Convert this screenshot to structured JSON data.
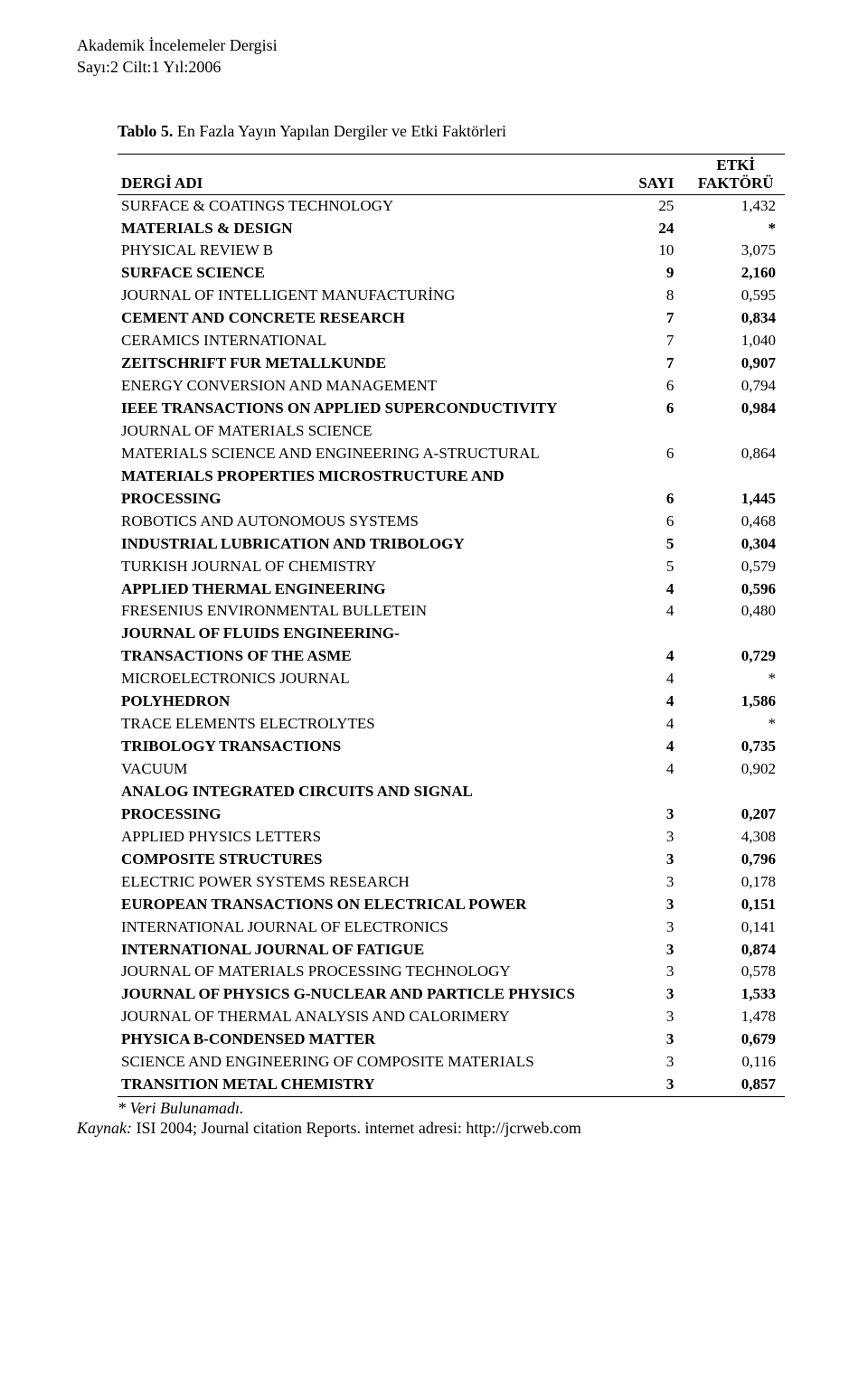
{
  "header": {
    "line1": "Akademik İncelemeler Dergisi",
    "line2": "Sayı:2 Cilt:1 Yıl:2006"
  },
  "table": {
    "caption_bold": "Tablo 5.",
    "caption_rest": " En Fazla Yayın Yapılan Dergiler ve Etki Faktörleri",
    "headers": {
      "dergi": "DERGİ ADI",
      "sayi": "SAYI",
      "etki_line1": "ETKİ",
      "etki_line2": "FAKTÖRÜ"
    },
    "rows": [
      {
        "name": "SURFACE & COATINGS TECHNOLOGY",
        "sayi": "25",
        "etki": "1,432",
        "bold": false
      },
      {
        "name": "MATERIALS & DESIGN",
        "sayi": "24",
        "etki": "*",
        "bold": true
      },
      {
        "name": "PHYSICAL REVIEW B",
        "sayi": "10",
        "etki": "3,075",
        "bold": false
      },
      {
        "name": "SURFACE SCIENCE",
        "sayi": "9",
        "etki": "2,160",
        "bold": true
      },
      {
        "name": "JOURNAL OF INTELLIGENT MANUFACTURİNG",
        "sayi": "8",
        "etki": "0,595",
        "bold": false
      },
      {
        "name": "CEMENT AND CONCRETE RESEARCH",
        "sayi": "7",
        "etki": "0,834",
        "bold": true
      },
      {
        "name": "CERAMICS INTERNATIONAL",
        "sayi": "7",
        "etki": "1,040",
        "bold": false
      },
      {
        "name": "ZEITSCHRIFT FUR METALLKUNDE",
        "sayi": "7",
        "etki": "0,907",
        "bold": true
      },
      {
        "name": "ENERGY CONVERSION AND MANAGEMENT",
        "sayi": "6",
        "etki": "0,794",
        "bold": false
      },
      {
        "name": "IEEE TRANSACTIONS ON APPLIED SUPERCONDUCTIVITY",
        "sayi": "6",
        "etki": "0,984",
        "bold": true
      },
      {
        "name": "JOURNAL OF MATERIALS SCIENCE",
        "sayi": "",
        "etki": "",
        "bold": false
      },
      {
        "name": "MATERIALS SCIENCE AND ENGINEERING A-STRUCTURAL",
        "sayi": "6",
        "etki": "0,864",
        "bold": false,
        "no_sayi_display": false
      },
      {
        "name": "MATERIALS PROPERTIES MICROSTRUCTURE AND",
        "sayi": "",
        "etki": "",
        "bold": true
      },
      {
        "name": "PROCESSING",
        "sayi": "6",
        "etki": "1,445",
        "bold": true
      },
      {
        "name": "ROBOTICS AND AUTONOMOUS SYSTEMS",
        "sayi": "6",
        "etki": "0,468",
        "bold": false
      },
      {
        "name": "INDUSTRIAL LUBRICATION AND TRIBOLOGY",
        "sayi": "5",
        "etki": "0,304",
        "bold": true
      },
      {
        "name": "TURKISH JOURNAL OF CHEMISTRY",
        "sayi": "5",
        "etki": "0,579",
        "bold": false
      },
      {
        "name": "APPLIED THERMAL ENGINEERING",
        "sayi": "4",
        "etki": "0,596",
        "bold": true
      },
      {
        "name": "FRESENIUS ENVIRONMENTAL BULLETEIN",
        "sayi": "4",
        "etki": "0,480",
        "bold": false
      },
      {
        "name": "JOURNAL OF FLUIDS ENGINEERING-",
        "sayi": "",
        "etki": "",
        "bold": true
      },
      {
        "name": "TRANSACTIONS OF THE ASME",
        "sayi": "4",
        "etki": "0,729",
        "bold": true
      },
      {
        "name": "MICROELECTRONICS JOURNAL",
        "sayi": "4",
        "etki": "*",
        "bold": false
      },
      {
        "name": "POLYHEDRON",
        "sayi": "4",
        "etki": "1,586",
        "bold": true
      },
      {
        "name": "TRACE ELEMENTS ELECTROLYTES",
        "sayi": "4",
        "etki": "*",
        "bold": false
      },
      {
        "name": "TRIBOLOGY TRANSACTIONS",
        "sayi": "4",
        "etki": "0,735",
        "bold": true
      },
      {
        "name": "VACUUM",
        "sayi": "4",
        "etki": "0,902",
        "bold": false
      },
      {
        "name": "ANALOG INTEGRATED CIRCUITS AND SIGNAL",
        "sayi": "",
        "etki": "",
        "bold": true
      },
      {
        "name": "PROCESSING",
        "sayi": "3",
        "etki": "0,207",
        "bold": true
      },
      {
        "name": "APPLIED PHYSICS LETTERS",
        "sayi": "3",
        "etki": "4,308",
        "bold": false
      },
      {
        "name": "COMPOSITE STRUCTURES",
        "sayi": "3",
        "etki": "0,796",
        "bold": true
      },
      {
        "name": "ELECTRIC POWER SYSTEMS RESEARCH",
        "sayi": "3",
        "etki": "0,178",
        "bold": false
      },
      {
        "name": "EUROPEAN TRANSACTIONS ON ELECTRICAL POWER",
        "sayi": "3",
        "etki": "0,151",
        "bold": true
      },
      {
        "name": "INTERNATIONAL JOURNAL OF ELECTRONICS",
        "sayi": "3",
        "etki": "0,141",
        "bold": false
      },
      {
        "name": "INTERNATIONAL JOURNAL OF FATIGUE",
        "sayi": "3",
        "etki": "0,874",
        "bold": true
      },
      {
        "name": "JOURNAL OF MATERIALS PROCESSING TECHNOLOGY",
        "sayi": "3",
        "etki": "0,578",
        "bold": false
      },
      {
        "name": "JOURNAL OF PHYSICS G-NUCLEAR AND PARTICLE PHYSICS",
        "sayi": "3",
        "etki": "1,533",
        "bold": true
      },
      {
        "name": "JOURNAL OF THERMAL ANALYSIS AND CALORIMERY",
        "sayi": "3",
        "etki": "1,478",
        "bold": false
      },
      {
        "name": "PHYSICA B-CONDENSED MATTER",
        "sayi": "3",
        "etki": "0,679",
        "bold": true
      },
      {
        "name": "SCIENCE AND ENGINEERING OF COMPOSITE MATERIALS",
        "sayi": "3",
        "etki": "0,116",
        "bold": false
      },
      {
        "name": "TRANSITION METAL CHEMISTRY",
        "sayi": "3",
        "etki": "0,857",
        "bold": true
      }
    ]
  },
  "footnote": "* Veri Bulunamadı.",
  "source": {
    "label": "Kaynak:",
    "text": " ISI 2004; Journal citation Reports. internet adresi: http://jcrweb.com"
  }
}
